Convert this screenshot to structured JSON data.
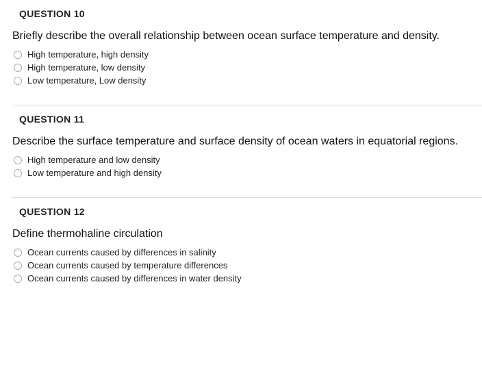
{
  "questions": [
    {
      "title": "QUESTION 10",
      "prompt": "Briefly describe the overall relationship between ocean surface temperature and density.",
      "options": [
        "High temperature, high density",
        "High temperature, low density",
        "Low temperature, Low density"
      ]
    },
    {
      "title": "QUESTION 11",
      "prompt": "Describe the surface temperature and surface density of ocean waters in equatorial regions.",
      "options": [
        "High temperature and low density",
        "Low temperature and high density"
      ]
    },
    {
      "title": "QUESTION 12",
      "prompt": "Define thermohaline circulation",
      "options": [
        "Ocean currents caused by differences in salinity",
        "Ocean currents caused by temperature differences",
        "Ocean currents caused by differences in water density"
      ]
    }
  ],
  "colors": {
    "text": "#000000",
    "radio_border": "#aaaaaa",
    "divider": "#dcdcdc",
    "background": "#ffffff"
  },
  "typography": {
    "title_fontsize": 14,
    "title_weight": 700,
    "prompt_fontsize": 16,
    "option_fontsize": 13
  }
}
